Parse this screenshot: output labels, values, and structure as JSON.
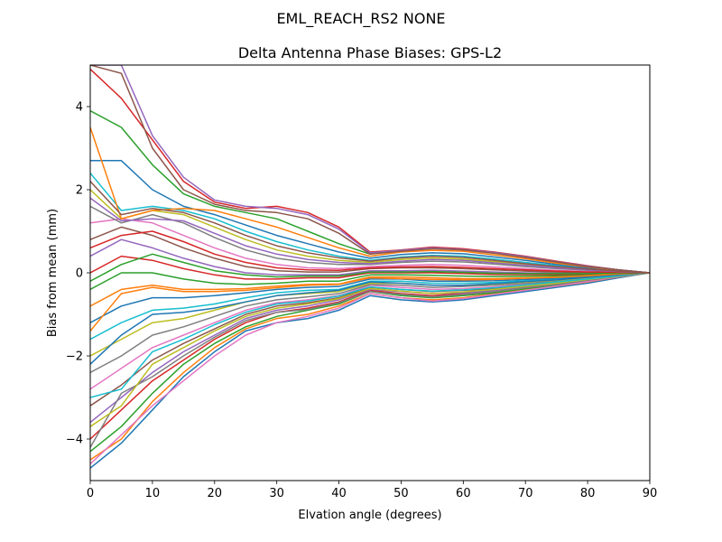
{
  "figure": {
    "suptitle": "EML_REACH_RS2   NONE"
  },
  "chart_data": {
    "type": "line",
    "title": "Delta Antenna Phase Biases: GPS-L2",
    "xlabel": "Elvation angle (degrees)",
    "ylabel": "Bias from mean (mm)",
    "xlim": [
      0,
      90
    ],
    "ylim": [
      -5,
      5
    ],
    "xticks": [
      0,
      10,
      20,
      30,
      40,
      50,
      60,
      70,
      80,
      90
    ],
    "yticks": [
      -4,
      -2,
      0,
      2,
      4
    ],
    "ytick_labels": [
      "−4",
      "−2",
      "0",
      "2",
      "4"
    ],
    "grid": false,
    "legend": "none",
    "colors": [
      "#1f77b4",
      "#ff7f0e",
      "#2ca02c",
      "#d62728",
      "#9467bd",
      "#8c564b",
      "#e377c2",
      "#7f7f7f",
      "#bcbd22",
      "#17becf"
    ],
    "x": [
      0,
      5,
      10,
      15,
      20,
      25,
      30,
      35,
      40,
      45,
      50,
      55,
      60,
      65,
      70,
      75,
      80,
      85,
      90
    ],
    "series": [
      {
        "values": [
          -4.7,
          -4.1,
          -3.3,
          -2.5,
          -1.9,
          -1.4,
          -1.2,
          -1.1,
          -0.9,
          -0.55,
          -0.65,
          -0.7,
          -0.65,
          -0.55,
          -0.45,
          -0.35,
          -0.25,
          -0.12,
          0
        ]
      },
      {
        "values": [
          -4.5,
          -4.0,
          -3.1,
          -2.4,
          -1.8,
          -1.35,
          -1.1,
          -1.0,
          -0.8,
          -0.5,
          -0.6,
          -0.65,
          -0.6,
          -0.5,
          -0.4,
          -0.32,
          -0.22,
          -0.1,
          0
        ]
      },
      {
        "values": [
          -4.3,
          -3.7,
          -2.9,
          -2.2,
          -1.7,
          -1.3,
          -1.05,
          -0.9,
          -0.75,
          -0.45,
          -0.55,
          -0.6,
          -0.55,
          -0.48,
          -0.38,
          -0.3,
          -0.2,
          -0.1,
          0
        ]
      },
      {
        "values": [
          -4.0,
          -3.3,
          -2.6,
          -2.1,
          -1.6,
          -1.2,
          -0.95,
          -0.85,
          -0.7,
          -0.42,
          -0.5,
          -0.55,
          -0.5,
          -0.45,
          -0.35,
          -0.28,
          -0.18,
          -0.09,
          0
        ]
      },
      {
        "values": [
          -3.6,
          -3.0,
          -2.4,
          -1.9,
          -1.5,
          -1.1,
          -0.9,
          -0.8,
          -0.65,
          -0.4,
          -0.45,
          -0.5,
          -0.48,
          -0.42,
          -0.33,
          -0.26,
          -0.17,
          -0.08,
          0
        ]
      },
      {
        "values": [
          -3.2,
          -2.7,
          -2.1,
          -1.7,
          -1.35,
          -1.0,
          -0.8,
          -0.72,
          -0.6,
          -0.35,
          -0.4,
          -0.45,
          -0.42,
          -0.38,
          -0.3,
          -0.24,
          -0.16,
          -0.08,
          0
        ]
      },
      {
        "values": [
          -2.8,
          -2.3,
          -1.8,
          -1.5,
          -1.2,
          -0.9,
          -0.72,
          -0.65,
          -0.55,
          -0.3,
          -0.35,
          -0.4,
          -0.38,
          -0.34,
          -0.27,
          -0.22,
          -0.15,
          -0.07,
          0
        ]
      },
      {
        "values": [
          -2.4,
          -2.0,
          -1.5,
          -1.3,
          -1.05,
          -0.8,
          -0.65,
          -0.58,
          -0.5,
          -0.28,
          -0.3,
          -0.35,
          -0.33,
          -0.3,
          -0.25,
          -0.2,
          -0.13,
          -0.06,
          0
        ]
      },
      {
        "values": [
          -2.0,
          -1.6,
          -1.2,
          -1.1,
          -0.9,
          -0.7,
          -0.55,
          -0.5,
          -0.45,
          -0.25,
          -0.25,
          -0.3,
          -0.3,
          -0.27,
          -0.22,
          -0.18,
          -0.12,
          -0.06,
          0
        ]
      },
      {
        "values": [
          -1.6,
          -1.2,
          -0.9,
          -0.85,
          -0.75,
          -0.6,
          -0.48,
          -0.42,
          -0.4,
          -0.2,
          -0.2,
          -0.25,
          -0.25,
          -0.23,
          -0.19,
          -0.15,
          -0.1,
          -0.05,
          0
        ]
      },
      {
        "values": [
          -1.2,
          -0.8,
          -0.6,
          -0.6,
          -0.55,
          -0.48,
          -0.4,
          -0.35,
          -0.33,
          -0.15,
          -0.15,
          -0.2,
          -0.2,
          -0.19,
          -0.16,
          -0.13,
          -0.09,
          -0.04,
          0
        ]
      },
      {
        "values": [
          -0.8,
          -0.4,
          -0.3,
          -0.4,
          -0.4,
          -0.38,
          -0.32,
          -0.28,
          -0.27,
          -0.1,
          -0.1,
          -0.12,
          -0.14,
          -0.14,
          -0.12,
          -0.1,
          -0.07,
          -0.03,
          0
        ]
      },
      {
        "values": [
          -0.4,
          0.0,
          0.0,
          -0.15,
          -0.25,
          -0.28,
          -0.25,
          -0.2,
          -0.2,
          -0.05,
          -0.05,
          -0.06,
          -0.08,
          -0.09,
          -0.08,
          -0.07,
          -0.05,
          -0.02,
          0
        ]
      },
      {
        "values": [
          0.0,
          0.4,
          0.3,
          0.1,
          -0.05,
          -0.15,
          -0.15,
          -0.12,
          -0.12,
          0.0,
          0.0,
          0.0,
          -0.02,
          -0.04,
          -0.04,
          -0.04,
          -0.03,
          -0.01,
          0
        ]
      },
      {
        "values": [
          0.4,
          0.8,
          0.6,
          0.35,
          0.15,
          0.0,
          -0.05,
          -0.05,
          -0.05,
          0.05,
          0.05,
          0.06,
          0.04,
          0.02,
          0.0,
          -0.01,
          -0.01,
          0.0,
          0
        ]
      },
      {
        "values": [
          0.8,
          1.1,
          0.9,
          0.6,
          0.35,
          0.15,
          0.05,
          0.02,
          0.02,
          0.1,
          0.12,
          0.12,
          0.1,
          0.07,
          0.04,
          0.02,
          0.01,
          0.0,
          0
        ]
      },
      {
        "values": [
          1.2,
          1.3,
          1.2,
          0.9,
          0.6,
          0.35,
          0.2,
          0.12,
          0.1,
          0.15,
          0.18,
          0.2,
          0.18,
          0.14,
          0.1,
          0.06,
          0.03,
          0.01,
          0
        ]
      },
      {
        "values": [
          1.6,
          1.2,
          1.4,
          1.2,
          0.85,
          0.55,
          0.35,
          0.25,
          0.2,
          0.2,
          0.25,
          0.28,
          0.26,
          0.21,
          0.15,
          0.1,
          0.06,
          0.02,
          0
        ]
      },
      {
        "values": [
          2.0,
          1.3,
          1.5,
          1.4,
          1.1,
          0.8,
          0.55,
          0.4,
          0.3,
          0.25,
          0.32,
          0.36,
          0.33,
          0.27,
          0.2,
          0.14,
          0.08,
          0.03,
          0
        ]
      },
      {
        "values": [
          2.4,
          1.5,
          1.6,
          1.5,
          1.3,
          1.0,
          0.75,
          0.55,
          0.4,
          0.3,
          0.38,
          0.42,
          0.4,
          0.33,
          0.25,
          0.17,
          0.1,
          0.04,
          0
        ]
      },
      {
        "values": [
          2.7,
          2.7,
          2.0,
          1.6,
          1.4,
          1.15,
          0.9,
          0.7,
          0.5,
          0.35,
          0.44,
          0.48,
          0.46,
          0.38,
          0.3,
          0.2,
          0.12,
          0.05,
          0
        ]
      },
      {
        "values": [
          3.5,
          1.3,
          1.5,
          1.55,
          1.5,
          1.3,
          1.1,
          0.85,
          0.6,
          0.4,
          0.5,
          0.54,
          0.52,
          0.43,
          0.34,
          0.23,
          0.14,
          0.06,
          0
        ]
      },
      {
        "values": [
          3.9,
          3.5,
          2.6,
          1.9,
          1.6,
          1.45,
          1.3,
          1.0,
          0.7,
          0.45,
          0.55,
          0.6,
          0.57,
          0.48,
          0.38,
          0.26,
          0.16,
          0.07,
          0
        ]
      },
      {
        "values": [
          4.9,
          4.2,
          3.2,
          2.2,
          1.7,
          1.55,
          1.6,
          1.45,
          1.1,
          0.5,
          0.55,
          0.62,
          0.58,
          0.5,
          0.4,
          0.28,
          0.17,
          0.07,
          0
        ]
      },
      {
        "values": [
          5.0,
          5.0,
          3.3,
          2.3,
          1.75,
          1.6,
          1.55,
          1.4,
          1.05,
          0.48,
          0.54,
          0.6,
          0.56,
          0.49,
          0.39,
          0.27,
          0.16,
          0.07,
          0
        ]
      },
      {
        "values": [
          5.0,
          4.8,
          3.0,
          2.0,
          1.65,
          1.5,
          1.45,
          1.3,
          0.95,
          0.45,
          0.52,
          0.58,
          0.55,
          0.47,
          0.37,
          0.26,
          0.15,
          0.07,
          0
        ]
      },
      {
        "values": [
          -4.6,
          -3.9,
          -3.2,
          -2.6,
          -2.0,
          -1.5,
          -1.2,
          -1.05,
          -0.85,
          -0.5,
          -0.6,
          -0.68,
          -0.62,
          -0.52,
          -0.42,
          -0.32,
          -0.21,
          -0.1,
          0
        ]
      },
      {
        "values": [
          -4.2,
          -2.9,
          -2.5,
          -2.0,
          -1.55,
          -1.15,
          -0.95,
          -0.88,
          -0.72,
          -0.45,
          -0.52,
          -0.58,
          -0.52,
          -0.45,
          -0.36,
          -0.28,
          -0.18,
          -0.09,
          0
        ]
      },
      {
        "values": [
          -3.7,
          -3.2,
          -2.2,
          -1.8,
          -1.4,
          -1.05,
          -0.85,
          -0.75,
          -0.62,
          -0.38,
          -0.44,
          -0.5,
          -0.46,
          -0.4,
          -0.32,
          -0.25,
          -0.16,
          -0.08,
          0
        ]
      },
      {
        "values": [
          -3.0,
          -2.8,
          -1.9,
          -1.6,
          -1.25,
          -0.95,
          -0.75,
          -0.68,
          -0.56,
          -0.34,
          -0.4,
          -0.44,
          -0.41,
          -0.36,
          -0.29,
          -0.22,
          -0.15,
          -0.07,
          0
        ]
      },
      {
        "values": [
          -2.2,
          -1.5,
          -1.0,
          -0.95,
          -0.85,
          -0.7,
          -0.55,
          -0.48,
          -0.42,
          -0.22,
          -0.25,
          -0.3,
          -0.3,
          -0.26,
          -0.21,
          -0.17,
          -0.11,
          -0.05,
          0
        ]
      },
      {
        "values": [
          -1.4,
          -0.5,
          -0.35,
          -0.45,
          -0.45,
          -0.42,
          -0.36,
          -0.3,
          -0.28,
          -0.12,
          -0.14,
          -0.16,
          -0.17,
          -0.16,
          -0.13,
          -0.11,
          -0.07,
          -0.03,
          0
        ]
      },
      {
        "values": [
          -0.2,
          0.2,
          0.45,
          0.25,
          0.05,
          -0.05,
          -0.1,
          -0.08,
          -0.08,
          0.02,
          0.02,
          0.03,
          0.01,
          -0.01,
          -0.02,
          -0.02,
          -0.02,
          -0.01,
          0
        ]
      },
      {
        "values": [
          0.6,
          0.9,
          1.0,
          0.75,
          0.45,
          0.25,
          0.12,
          0.07,
          0.06,
          0.12,
          0.14,
          0.15,
          0.13,
          0.1,
          0.07,
          0.04,
          0.02,
          0.01,
          0
        ]
      },
      {
        "values": [
          1.8,
          1.25,
          1.3,
          1.25,
          0.95,
          0.65,
          0.45,
          0.32,
          0.25,
          0.22,
          0.28,
          0.32,
          0.3,
          0.24,
          0.18,
          0.12,
          0.07,
          0.03,
          0
        ]
      },
      {
        "values": [
          2.2,
          1.4,
          1.55,
          1.45,
          1.2,
          0.9,
          0.65,
          0.48,
          0.36,
          0.28,
          0.36,
          0.4,
          0.37,
          0.3,
          0.22,
          0.15,
          0.09,
          0.04,
          0
        ]
      }
    ]
  }
}
